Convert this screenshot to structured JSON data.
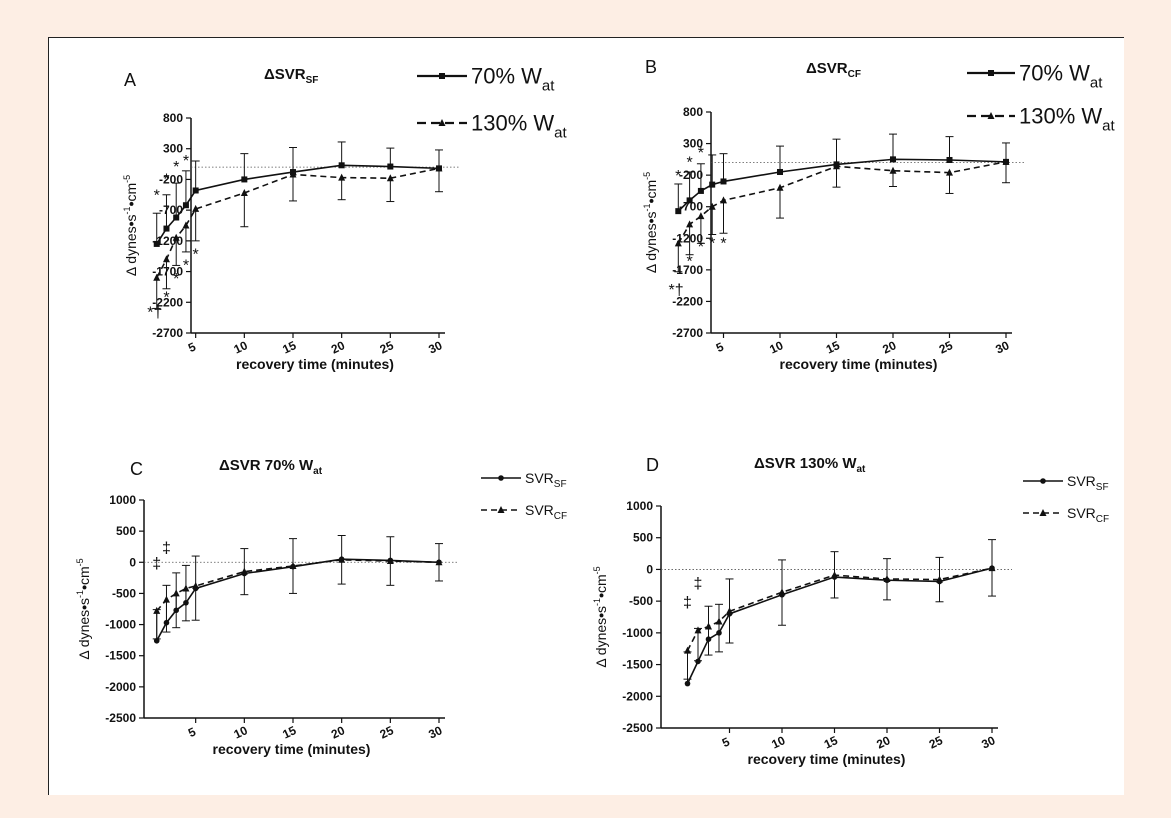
{
  "colors": {
    "page_background": "#fdeee4",
    "panel_background": "#ffffff",
    "ink": "#111111"
  },
  "chart_data": [
    {
      "type": "line",
      "panel_label": "A",
      "title_main": "ΔSVR",
      "title_sub": "SF",
      "title_tail": "",
      "xlabel": "recovery time (minutes)",
      "ylabel_parts": [
        "Δ dynes",
        "•",
        "s",
        "-1",
        "•",
        "cm",
        "-5"
      ],
      "x_ticks": [
        5,
        10,
        15,
        20,
        25,
        30
      ],
      "y_ticks": [
        800,
        300,
        -200,
        -700,
        -1200,
        -1700,
        -2200,
        -2700
      ],
      "xlim": [
        0,
        30
      ],
      "ylim": [
        -2700,
        800
      ],
      "legend_position": "top-right",
      "series": [
        {
          "name": "70% W",
          "name_sub": "at",
          "line_style": "solid",
          "marker": "square",
          "x": [
            1,
            2,
            3,
            4,
            5,
            10,
            15,
            20,
            25,
            30
          ],
          "y": [
            -1250,
            -1000,
            -820,
            -620,
            -380,
            -200,
            -80,
            30,
            10,
            -20
          ],
          "err": [
            500,
            550,
            560,
            560,
            480,
            420,
            400,
            380,
            300,
            300
          ]
        },
        {
          "name": "130% W",
          "name_sub": "at",
          "line_style": "dashed",
          "marker": "triangle",
          "x": [
            1,
            2,
            3,
            4,
            5,
            10,
            15,
            20,
            25,
            30
          ],
          "y": [
            -1800,
            -1500,
            -1150,
            -950,
            -680,
            -420,
            -120,
            -170,
            -180,
            -20
          ],
          "err": [
            500,
            480,
            450,
            430,
            520,
            550,
            430,
            360,
            380,
            380
          ]
        }
      ],
      "annotations": [
        {
          "text": "*",
          "x": 1,
          "y": -540
        },
        {
          "text": "*",
          "x": 2,
          "y": -280
        },
        {
          "text": "*",
          "x": 3,
          "y": -80
        },
        {
          "text": "*",
          "x": 4,
          "y": 20
        },
        {
          "text": "*",
          "x": 2,
          "y": -2200
        },
        {
          "text": "*",
          "x": 3,
          "y": -1900
        },
        {
          "text": "*",
          "x": 4,
          "y": -1680
        },
        {
          "text": "*",
          "x": 5,
          "y": -1500
        },
        {
          "text": "*†",
          "x": 0.8,
          "y": -2450
        }
      ]
    },
    {
      "type": "line",
      "panel_label": "B",
      "title_main": "ΔSVR",
      "title_sub": "CF",
      "title_tail": "",
      "xlabel": "recovery time (minutes)",
      "ylabel_parts": [
        "Δ dynes",
        "•",
        "s",
        "-1",
        "•",
        "cm",
        "-5"
      ],
      "x_ticks": [
        5,
        10,
        15,
        20,
        25,
        30
      ],
      "y_ticks": [
        800,
        300,
        -200,
        -700,
        -1200,
        -1700,
        -2200,
        -2700
      ],
      "xlim": [
        0,
        30
      ],
      "ylim": [
        -2700,
        800
      ],
      "legend_position": "top-right",
      "series": [
        {
          "name": "70% W",
          "name_sub": "at",
          "line_style": "solid",
          "marker": "square",
          "x": [
            1,
            2,
            3,
            4,
            5,
            10,
            15,
            20,
            25,
            30
          ],
          "y": [
            -770,
            -600,
            -450,
            -350,
            -300,
            -150,
            -30,
            50,
            40,
            10
          ],
          "err": [
            430,
            450,
            430,
            470,
            440,
            410,
            400,
            400,
            370,
            300
          ]
        },
        {
          "name": "130% W",
          "name_sub": "at",
          "line_style": "dashed",
          "marker": "triangle",
          "x": [
            1,
            2,
            3,
            4,
            5,
            10,
            15,
            20,
            25,
            30
          ],
          "y": [
            -1280,
            -980,
            -850,
            -700,
            -600,
            -400,
            -60,
            -130,
            -160,
            10
          ],
          "err": [
            450,
            480,
            430,
            440,
            520,
            480,
            330,
            250,
            330,
            330
          ]
        }
      ],
      "annotations": [
        {
          "text": "*",
          "x": 1,
          "y": -290
        },
        {
          "text": "*",
          "x": 2,
          "y": -80
        },
        {
          "text": "*",
          "x": 3,
          "y": 70
        },
        {
          "text": "*",
          "x": 2,
          "y": -1650
        },
        {
          "text": "*",
          "x": 3,
          "y": -1420
        },
        {
          "text": "*",
          "x": 4,
          "y": -1360
        },
        {
          "text": "*",
          "x": 5,
          "y": -1360
        },
        {
          "text": "*†",
          "x": 0.8,
          "y": -2100
        }
      ]
    },
    {
      "type": "line",
      "panel_label": "C",
      "title_main": "ΔSVR 70% W",
      "title_sub": "at",
      "title_tail": "",
      "xlabel": "recovery time (minutes)",
      "ylabel_parts": [
        "Δ dynes",
        "•",
        "s",
        "-1",
        "•",
        "cm",
        "-5"
      ],
      "x_ticks": [
        5,
        10,
        15,
        20,
        25,
        30
      ],
      "y_ticks": [
        1000,
        500,
        0,
        -500,
        -1000,
        -1500,
        -2000,
        -2500
      ],
      "xlim": [
        0,
        30
      ],
      "ylim": [
        -2500,
        1000
      ],
      "legend_position": "top-right",
      "series": [
        {
          "name": "SVR",
          "name_sub": "SF",
          "line_style": "solid",
          "marker": "dot",
          "x": [
            1,
            2,
            3,
            4,
            5,
            10,
            15,
            20,
            25,
            30
          ],
          "y": [
            -1260,
            -970,
            -770,
            -650,
            -420,
            -180,
            -70,
            50,
            30,
            0
          ],
          "err": [
            500,
            600,
            600,
            600,
            520,
            400,
            450,
            380,
            380,
            300
          ]
        },
        {
          "name": "SVR",
          "name_sub": "CF",
          "line_style": "dashed",
          "marker": "triangle",
          "x": [
            1,
            2,
            3,
            4,
            5,
            10,
            15,
            20,
            25,
            30
          ],
          "y": [
            -780,
            -600,
            -500,
            -420,
            -380,
            -150,
            -60,
            40,
            20,
            0
          ],
          "err": [
            450,
            520,
            550,
            520,
            550,
            370,
            440,
            390,
            390,
            300
          ]
        }
      ],
      "annotations": [
        {
          "text": "‡",
          "x": 1,
          "y": -100
        },
        {
          "text": "‡",
          "x": 2,
          "y": 150
        }
      ]
    },
    {
      "type": "line",
      "panel_label": "D",
      "title_main": "ΔSVR 130% W",
      "title_sub": "at",
      "title_tail": "",
      "xlabel": "recovery time (minutes)",
      "ylabel_parts": [
        "Δ dynes",
        "•",
        "s",
        "-1",
        "•",
        "cm",
        "-5"
      ],
      "x_ticks": [
        5,
        10,
        15,
        20,
        25,
        30
      ],
      "y_ticks": [
        1000,
        500,
        0,
        -500,
        -1000,
        -1500,
        -2000,
        -2500
      ],
      "xlim": [
        0,
        30
      ],
      "ylim": [
        -2500,
        1000
      ],
      "legend_position": "top-right",
      "series": [
        {
          "name": "SVR",
          "name_sub": "SF",
          "line_style": "solid",
          "marker": "dot",
          "x": [
            1,
            2,
            3,
            4,
            5,
            10,
            15,
            20,
            25,
            30
          ],
          "y": [
            -1800,
            -1450,
            -1100,
            -1000,
            -700,
            -400,
            -120,
            -170,
            -190,
            20
          ],
          "err": [
            500,
            520,
            520,
            450,
            550,
            550,
            400,
            340,
            380,
            450
          ]
        },
        {
          "name": "SVR",
          "name_sub": "CF",
          "line_style": "dashed",
          "marker": "triangle",
          "x": [
            1,
            2,
            3,
            4,
            5,
            10,
            15,
            20,
            25,
            30
          ],
          "y": [
            -1280,
            -960,
            -900,
            -820,
            -660,
            -360,
            -90,
            -150,
            -160,
            20
          ],
          "err": [
            450,
            480,
            450,
            480,
            500,
            520,
            360,
            330,
            350,
            440
          ]
        }
      ],
      "annotations": [
        {
          "text": "‡",
          "x": 1,
          "y": -600
        },
        {
          "text": "‡",
          "x": 2,
          "y": -300
        }
      ]
    }
  ]
}
